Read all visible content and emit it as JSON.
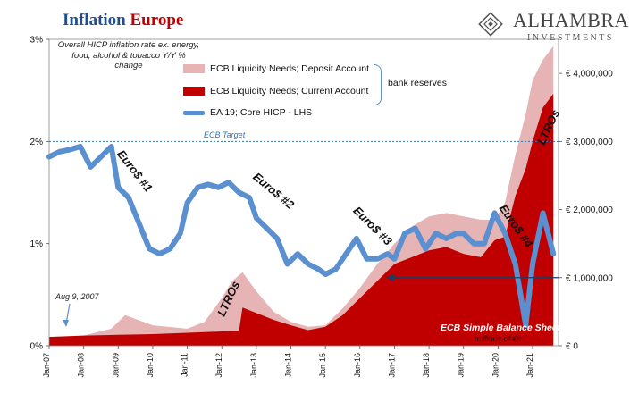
{
  "header": {
    "title_part1": "Inflation",
    "title_part2": "Europe",
    "brand_name": "ALHAMBRA",
    "brand_sub": "INVESTMENTS"
  },
  "note": "Overall HICP inflation rate ex. energy, food, alcohol & tobacco Y/Y % change",
  "legend": {
    "deposit": "ECB Liquidity Needs; Deposit Account",
    "current": "ECB Liquidity Needs; Current Account",
    "hicp": "EA 19; Core HICP - LHS",
    "bracket": "bank reserves"
  },
  "annotations": {
    "euro1": "Euro$ #1",
    "euro2": "Euro$ #2",
    "euro3": "Euro$ #3",
    "euro4": "Euro$ #4",
    "ltros_2012": "LTROs",
    "ltros_2021": "LTROs",
    "ecb_target": "ECB Target",
    "aug9": "Aug 9, 2007",
    "simple_bs": "ECB Simple Balance Sheet",
    "millions": "millions of €s"
  },
  "colors": {
    "title_blue": "#1f4e8c",
    "title_red": "#c00000",
    "deposit": "#e6b4b4",
    "current": "#c00000",
    "hicp": "#5a8fd0",
    "target": "#2e75b6"
  },
  "chart_data": {
    "type": "area",
    "x_ticks": [
      "Jan-07",
      "Jan-08",
      "Jan-09",
      "Jan-10",
      "Jan-11",
      "Jan-12",
      "Jan-13",
      "Jan-14",
      "Jan-15",
      "Jan-16",
      "Jan-17",
      "Jan-18",
      "Jan-19",
      "Jan-20",
      "Jan-21"
    ],
    "y_left": {
      "ticks": [
        "0%",
        "1%",
        "2%",
        "3%"
      ],
      "range": [
        0,
        3
      ]
    },
    "y_right": {
      "ticks": [
        "€ 0",
        "€ 1,000,000",
        "€ 2,000,000",
        "€ 3,000,000",
        "€ 4,000,000"
      ],
      "range": [
        0,
        4500000
      ]
    },
    "reference_line": {
      "label": "ECB Target",
      "value": 2.0
    },
    "series": [
      {
        "name": "EA 19; Core HICP - LHS",
        "axis": "left",
        "type": "line",
        "x": [
          2007.0,
          2007.3,
          2007.6,
          2007.9,
          2008.2,
          2008.5,
          2008.8,
          2009.0,
          2009.3,
          2009.6,
          2009.9,
          2010.2,
          2010.5,
          2010.8,
          2011.0,
          2011.3,
          2011.6,
          2011.9,
          2012.2,
          2012.5,
          2012.8,
          2013.0,
          2013.3,
          2013.6,
          2013.9,
          2014.2,
          2014.5,
          2014.8,
          2015.0,
          2015.3,
          2015.6,
          2015.9,
          2016.2,
          2016.5,
          2016.8,
          2017.0,
          2017.3,
          2017.6,
          2017.9,
          2018.2,
          2018.5,
          2018.8,
          2019.0,
          2019.3,
          2019.6,
          2019.9,
          2020.2,
          2020.5,
          2020.8,
          2021.0,
          2021.3,
          2021.6
        ],
        "values": [
          1.85,
          1.9,
          1.92,
          1.95,
          1.75,
          1.85,
          1.95,
          1.55,
          1.45,
          1.2,
          0.95,
          0.9,
          0.95,
          1.1,
          1.4,
          1.55,
          1.58,
          1.55,
          1.6,
          1.5,
          1.45,
          1.25,
          1.15,
          1.05,
          0.8,
          0.9,
          0.8,
          0.75,
          0.7,
          0.75,
          0.9,
          1.05,
          0.85,
          0.85,
          0.9,
          0.85,
          1.1,
          1.15,
          0.95,
          1.1,
          1.05,
          1.1,
          1.1,
          1.0,
          1.0,
          1.3,
          1.1,
          0.8,
          0.2,
          0.8,
          1.3,
          0.9
        ]
      },
      {
        "name": "ECB Liquidity Needs; Current Account",
        "axis": "right",
        "type": "area",
        "x": [
          2007.0,
          2008.0,
          2009.0,
          2010.0,
          2011.0,
          2012.0,
          2012.5,
          2012.6,
          2013.0,
          2013.5,
          2014.0,
          2014.5,
          2015.0,
          2015.5,
          2016.0,
          2016.5,
          2017.0,
          2017.5,
          2018.0,
          2018.5,
          2019.0,
          2019.5,
          2019.9,
          2020.2,
          2020.5,
          2020.8,
          2021.0,
          2021.3,
          2021.6
        ],
        "values": [
          130000,
          150000,
          160000,
          170000,
          190000,
          210000,
          220000,
          560000,
          480000,
          380000,
          300000,
          230000,
          280000,
          450000,
          700000,
          950000,
          1200000,
          1300000,
          1400000,
          1450000,
          1350000,
          1300000,
          1550000,
          1600000,
          2200000,
          2600000,
          3000000,
          3500000,
          3700000
        ]
      },
      {
        "name": "ECB Liquidity Needs; Deposit Account",
        "axis": "right",
        "type": "area",
        "x": [
          2007.0,
          2008.0,
          2008.8,
          2009.2,
          2010.0,
          2011.0,
          2011.5,
          2012.0,
          2012.3,
          2012.6,
          2013.0,
          2013.5,
          2014.0,
          2014.5,
          2015.0,
          2015.5,
          2016.0,
          2016.5,
          2017.0,
          2017.5,
          2018.0,
          2018.5,
          2019.0,
          2019.5,
          2019.9,
          2020.2,
          2020.5,
          2020.8,
          2021.0,
          2021.3,
          2021.6
        ],
        "values": [
          130000,
          150000,
          250000,
          450000,
          300000,
          250000,
          350000,
          700000,
          950000,
          1080000,
          800000,
          500000,
          350000,
          280000,
          300000,
          550000,
          850000,
          1200000,
          1500000,
          1750000,
          1900000,
          1950000,
          1900000,
          1850000,
          1850000,
          2100000,
          2800000,
          3400000,
          3900000,
          4200000,
          4400000
        ]
      }
    ]
  }
}
